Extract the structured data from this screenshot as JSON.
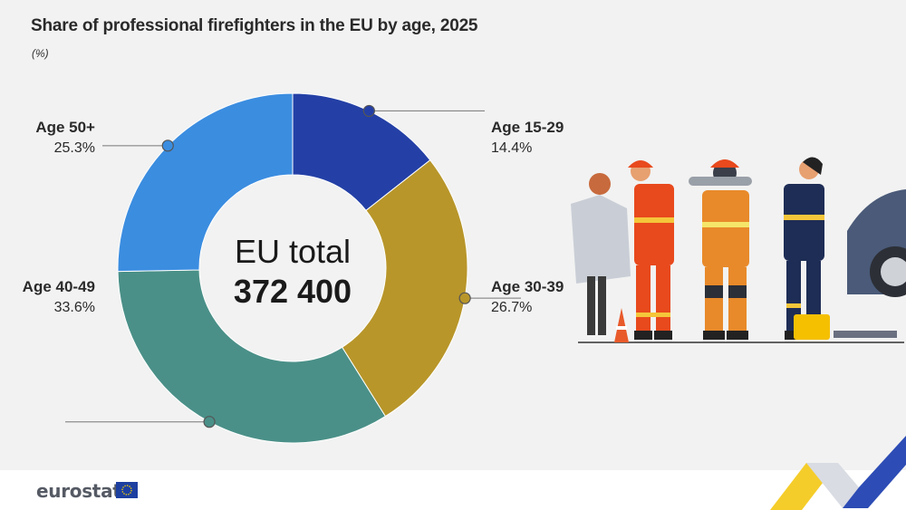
{
  "header": {
    "title": "Share of professional firefighters in the EU by age, 2025",
    "unit": "(%)"
  },
  "chart_data": {
    "type": "pie",
    "variant": "donut",
    "title": "Share of professional firefighters in the EU by age, 2025",
    "unit": "(%)",
    "center_label": [
      "EU total",
      "372 400"
    ],
    "slices": [
      {
        "label": "Age 15-29",
        "value_label": "14.4%",
        "value": 14.4,
        "color": "#2440a6"
      },
      {
        "label": "Age 30-39",
        "value_label": "26.7%",
        "value": 26.7,
        "color": "#b8962a"
      },
      {
        "label": "Age 40-49",
        "value_label": "33.6%",
        "value": 33.6,
        "color": "#4a9088"
      },
      {
        "label": "Age 50+",
        "value_label": "25.3%",
        "value": 25.3,
        "color": "#3b8de0"
      }
    ]
  },
  "footer": {
    "logo": "eurostat",
    "flag_icon": "eu-flag-icon"
  },
  "illustration": {
    "icon": "firefighters-illustration"
  }
}
